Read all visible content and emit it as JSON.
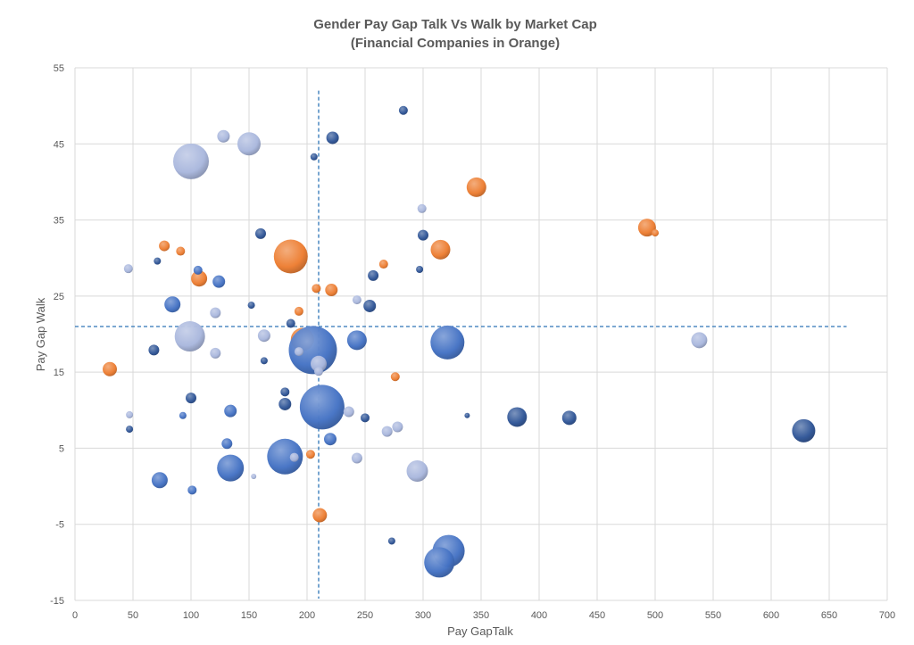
{
  "chart_data": {
    "type": "bubble",
    "title": "Gender Pay Gap Talk Vs Walk by Market Cap",
    "subtitle": "(Financial Companies in Orange)",
    "xlabel": "Pay GapTalk",
    "ylabel": "Pay Gap Walk",
    "xlim": [
      0,
      700
    ],
    "ylim": [
      -15,
      55
    ],
    "xticks": [
      "0",
      "50",
      "100",
      "150",
      "200",
      "250",
      "300",
      "350",
      "400",
      "450",
      "500",
      "550",
      "600",
      "650",
      "700"
    ],
    "yticks": [
      "-15",
      "-5",
      "5",
      "15",
      "25",
      "35",
      "45",
      "55"
    ],
    "grid": true,
    "reference_lines": {
      "x": 210,
      "y": 21
    },
    "colors": {
      "financial": "#ED7D31",
      "dark": "#2F5597",
      "mid": "#4472C4",
      "light": "#A9B7DD"
    },
    "series": [
      {
        "name": "Financial",
        "color": "#ED7D31",
        "points": [
          {
            "x": 186,
            "y": 30.2,
            "r": 19
          },
          {
            "x": 196,
            "y": 19.3,
            "r": 13
          },
          {
            "x": 346,
            "y": 39.3,
            "r": 11
          },
          {
            "x": 315,
            "y": 31.1,
            "r": 11
          },
          {
            "x": 493,
            "y": 34,
            "r": 10
          },
          {
            "x": 107,
            "y": 27.3,
            "r": 9
          },
          {
            "x": 30,
            "y": 15.4,
            "r": 8
          },
          {
            "x": 221,
            "y": 25.8,
            "r": 7
          },
          {
            "x": 211,
            "y": -3.8,
            "r": 8
          },
          {
            "x": 77,
            "y": 31.6,
            "r": 6
          },
          {
            "x": 208,
            "y": 26,
            "r": 5
          },
          {
            "x": 193,
            "y": 23,
            "r": 5
          },
          {
            "x": 276,
            "y": 14.4,
            "r": 5
          },
          {
            "x": 266,
            "y": 29.2,
            "r": 5
          },
          {
            "x": 91,
            "y": 30.9,
            "r": 5
          },
          {
            "x": 203,
            "y": 4.2,
            "r": 5
          },
          {
            "x": 500,
            "y": 33.3,
            "r": 4
          }
        ]
      },
      {
        "name": "Dark Blue",
        "color": "#2F5597",
        "points": [
          {
            "x": 283,
            "y": 49.4,
            "r": 5
          },
          {
            "x": 222,
            "y": 45.8,
            "r": 7
          },
          {
            "x": 206,
            "y": 43.3,
            "r": 4
          },
          {
            "x": 160,
            "y": 33.2,
            "r": 6
          },
          {
            "x": 300,
            "y": 33,
            "r": 6
          },
          {
            "x": 71,
            "y": 29.6,
            "r": 4
          },
          {
            "x": 297,
            "y": 28.5,
            "r": 4
          },
          {
            "x": 257,
            "y": 27.7,
            "r": 6
          },
          {
            "x": 254,
            "y": 23.7,
            "r": 7
          },
          {
            "x": 152,
            "y": 23.8,
            "r": 4
          },
          {
            "x": 186,
            "y": 21.4,
            "r": 5
          },
          {
            "x": 68,
            "y": 17.9,
            "r": 6
          },
          {
            "x": 163,
            "y": 16.5,
            "r": 4
          },
          {
            "x": 100,
            "y": 11.6,
            "r": 6
          },
          {
            "x": 181,
            "y": 12.4,
            "r": 5
          },
          {
            "x": 181,
            "y": 10.8,
            "r": 7
          },
          {
            "x": 250,
            "y": 9,
            "r": 5
          },
          {
            "x": 338,
            "y": 9.3,
            "r": 3
          },
          {
            "x": 381,
            "y": 9.1,
            "r": 11
          },
          {
            "x": 426,
            "y": 9,
            "r": 8
          },
          {
            "x": 628,
            "y": 7.3,
            "r": 13
          },
          {
            "x": 47,
            "y": 7.5,
            "r": 4
          },
          {
            "x": 273,
            "y": -7.2,
            "r": 4
          }
        ]
      },
      {
        "name": "Mid Blue",
        "color": "#4472C4",
        "points": [
          {
            "x": 205,
            "y": 17.9,
            "r": 27
          },
          {
            "x": 213,
            "y": 10.4,
            "r": 25
          },
          {
            "x": 181,
            "y": 3.9,
            "r": 20
          },
          {
            "x": 321,
            "y": 18.9,
            "r": 19
          },
          {
            "x": 322,
            "y": -8.5,
            "r": 18
          },
          {
            "x": 314,
            "y": -10,
            "r": 17
          },
          {
            "x": 134,
            "y": 2.4,
            "r": 15
          },
          {
            "x": 243,
            "y": 19.2,
            "r": 11
          },
          {
            "x": 84,
            "y": 23.9,
            "r": 9
          },
          {
            "x": 73,
            "y": 0.8,
            "r": 9
          },
          {
            "x": 124,
            "y": 26.9,
            "r": 7
          },
          {
            "x": 134,
            "y": 9.9,
            "r": 7
          },
          {
            "x": 220,
            "y": 6.2,
            "r": 7
          },
          {
            "x": 131,
            "y": 5.6,
            "r": 6
          },
          {
            "x": 93,
            "y": 9.3,
            "r": 4
          },
          {
            "x": 101,
            "y": -0.5,
            "r": 5
          },
          {
            "x": 106,
            "y": 28.4,
            "r": 5
          }
        ]
      },
      {
        "name": "Light Blue",
        "color": "#A9B7DD",
        "points": [
          {
            "x": 100,
            "y": 42.7,
            "r": 20
          },
          {
            "x": 99,
            "y": 19.7,
            "r": 17
          },
          {
            "x": 150,
            "y": 45,
            "r": 13
          },
          {
            "x": 295,
            "y": 2,
            "r": 12
          },
          {
            "x": 538,
            "y": 19.2,
            "r": 9
          },
          {
            "x": 210,
            "y": 16.1,
            "r": 9
          },
          {
            "x": 128,
            "y": 46,
            "r": 7
          },
          {
            "x": 163,
            "y": 19.8,
            "r": 7
          },
          {
            "x": 121,
            "y": 17.5,
            "r": 6
          },
          {
            "x": 121,
            "y": 22.8,
            "r": 6
          },
          {
            "x": 46,
            "y": 28.6,
            "r": 5
          },
          {
            "x": 299,
            "y": 36.5,
            "r": 5
          },
          {
            "x": 243,
            "y": 24.5,
            "r": 5
          },
          {
            "x": 269,
            "y": 7.2,
            "r": 6
          },
          {
            "x": 278,
            "y": 7.8,
            "r": 6
          },
          {
            "x": 236,
            "y": 9.8,
            "r": 6
          },
          {
            "x": 243,
            "y": 3.7,
            "r": 6
          },
          {
            "x": 189,
            "y": 3.8,
            "r": 5
          },
          {
            "x": 210,
            "y": 15.1,
            "r": 5
          },
          {
            "x": 193,
            "y": 17.7,
            "r": 5
          },
          {
            "x": 47,
            "y": 9.4,
            "r": 4
          },
          {
            "x": 154,
            "y": 1.3,
            "r": 3
          }
        ]
      }
    ]
  }
}
